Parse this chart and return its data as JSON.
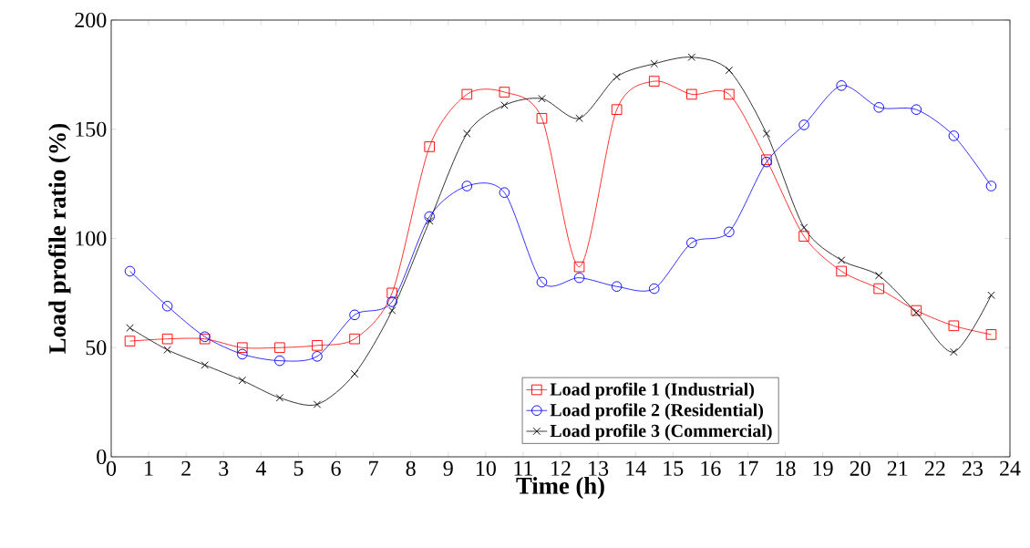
{
  "chart_data": {
    "type": "line",
    "xlabel": "Time (h)",
    "ylabel": "Load profile ratio (%)",
    "x": [
      0.5,
      1.5,
      2.5,
      3.5,
      4.5,
      5.5,
      6.5,
      7.5,
      8.5,
      9.5,
      10.5,
      11.5,
      12.5,
      13.5,
      14.5,
      15.5,
      16.5,
      17.5,
      18.5,
      19.5,
      20.5,
      21.5,
      22.5,
      23.5
    ],
    "series": [
      {
        "name": "Load profile 1 (Industrial)",
        "color": "#ff0000",
        "marker": "square",
        "values": [
          53,
          54,
          54,
          50,
          50,
          51,
          54,
          75,
          142,
          166,
          167,
          155,
          87,
          159,
          172,
          166,
          166,
          136,
          101,
          85,
          77,
          67,
          60,
          56
        ]
      },
      {
        "name": "Load profile 2 (Residential)",
        "color": "#0000ff",
        "marker": "circle",
        "values": [
          85,
          69,
          55,
          47,
          44,
          46,
          65,
          71,
          110,
          124,
          121,
          80,
          82,
          78,
          77,
          98,
          103,
          135,
          152,
          170,
          160,
          159,
          147,
          124
        ]
      },
      {
        "name": "Load profile 3 (Commercial)",
        "color": "#000000",
        "marker": "cross",
        "values": [
          59,
          49,
          42,
          35,
          27,
          24,
          38,
          67,
          108,
          148,
          161,
          164,
          155,
          174,
          180,
          183,
          177,
          148,
          105,
          90,
          83,
          66,
          48,
          74
        ]
      }
    ],
    "xlim": [
      0,
      24
    ],
    "xticks": [
      0,
      1,
      2,
      3,
      4,
      5,
      6,
      7,
      8,
      9,
      10,
      11,
      12,
      13,
      14,
      15,
      16,
      17,
      18,
      19,
      20,
      21,
      22,
      23,
      24
    ],
    "ylim": [
      0,
      200
    ],
    "yticks": [
      0,
      50,
      100,
      150,
      200
    ],
    "grid": false,
    "legend": "bottom",
    "line_style": "solid"
  }
}
